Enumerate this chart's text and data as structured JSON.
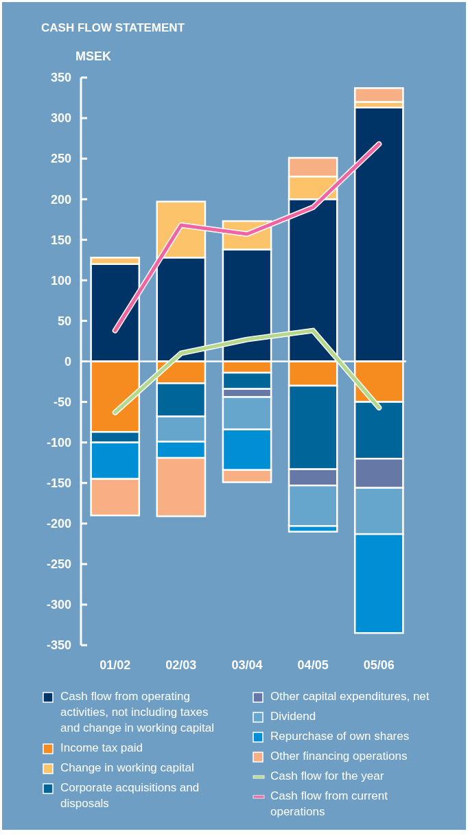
{
  "chart_data": {
    "type": "bar",
    "title": "CASH FLOW STATEMENT",
    "ylabel": "MSEK",
    "stacked": true,
    "categories": [
      "01/02",
      "02/03",
      "03/04",
      "04/05",
      "05/06"
    ],
    "ylim": [
      -350,
      350
    ],
    "yticks": [
      -350,
      -300,
      -250,
      -200,
      -150,
      -100,
      -50,
      0,
      50,
      100,
      150,
      200,
      250,
      300,
      350
    ],
    "legend": "bottom",
    "ref_lines": [
      {
        "axis": "y",
        "value": 0
      }
    ],
    "series": [
      {
        "name": "Cash flow from operating activities, not including taxes and change in working capital",
        "color": "#003366",
        "values": [
          120,
          128,
          138,
          200,
          313
        ]
      },
      {
        "name": "Income tax paid",
        "color": "#f68b1f",
        "values": [
          -87,
          -27,
          -14,
          -30,
          -50
        ]
      },
      {
        "name": "Change in working capital",
        "color": "#fdc36a",
        "values": [
          8,
          69,
          35,
          28,
          7
        ]
      },
      {
        "name": "Corporate acquisitions and disposals",
        "color": "#00669a",
        "values": [
          -13,
          -41,
          -20,
          -103,
          -70
        ]
      },
      {
        "name": "Other capital expenditures, net",
        "color": "#6679a6",
        "values": [
          null,
          null,
          -10,
          -20,
          -36
        ]
      },
      {
        "name": "Dividend",
        "color": "#66a5cc",
        "values": [
          null,
          -31,
          -40,
          -50,
          -57
        ]
      },
      {
        "name": "Repurchase of own shares",
        "color": "#008fd5",
        "values": [
          -45,
          -20,
          -50,
          -7,
          -122
        ]
      },
      {
        "name": "Other financing operations",
        "color": "#f8af84",
        "values": [
          -45,
          -72,
          -15,
          23,
          17
        ]
      },
      {
        "name": "Cash flow for the year",
        "type": "line",
        "color": "#b5d98b",
        "values": [
          -63,
          10,
          27,
          38,
          -57
        ]
      },
      {
        "name": "Cash flow from current operations",
        "type": "line",
        "color": "#ef64a2",
        "values": [
          38,
          168,
          157,
          190,
          268
        ]
      }
    ]
  }
}
